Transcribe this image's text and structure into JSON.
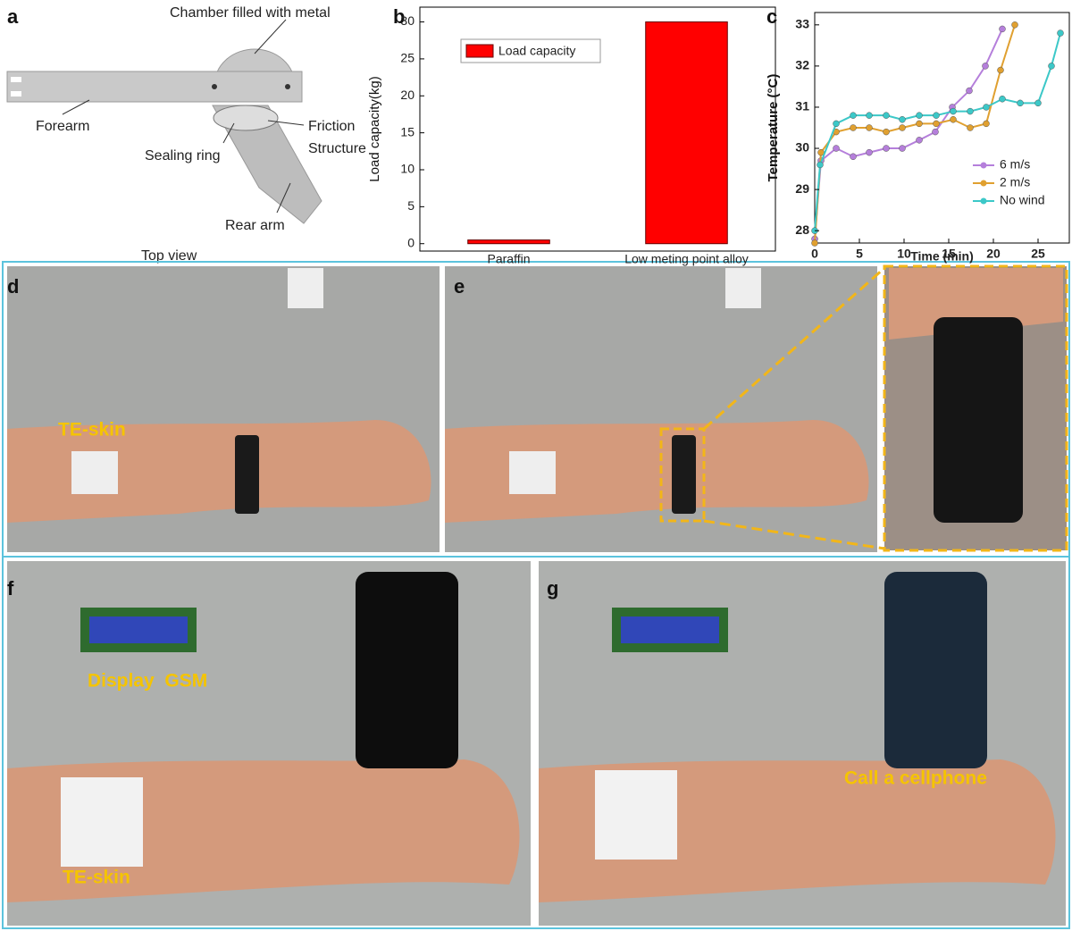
{
  "panel_a": {
    "letter": "a",
    "chamber": "Chamber filled with metal",
    "forearm": "Forearm",
    "friction": [
      "Friction",
      "Structure"
    ],
    "sealing": "Sealing ring",
    "rear_arm": "Rear arm",
    "view": "Top view"
  },
  "panel_d": {
    "letter": "d",
    "label": "TE-skin"
  },
  "panel_e": {
    "letter": "e"
  },
  "panel_f": {
    "letter": "f",
    "label1": "Display  GSM",
    "label2": "TE-skin"
  },
  "panel_g": {
    "letter": "g",
    "label": "Call a cellphone"
  },
  "chart_data": [
    {
      "type": "bar",
      "panel": "b",
      "ylabel": "Load capacity(kg)",
      "categories": [
        "Paraffin",
        "Low meting point alloy"
      ],
      "values": [
        0.5,
        30
      ],
      "color": "#ff0000",
      "ylim": [
        -1,
        32
      ],
      "yticks": [
        0,
        5,
        10,
        15,
        20,
        25,
        30
      ],
      "legend": "upper left",
      "legend_label": "Load capacity"
    },
    {
      "type": "line",
      "panel": "c",
      "xlabel": "Time (min)",
      "ylabel": "Temperature (°C)",
      "xlim": [
        0,
        28.5
      ],
      "ylim": [
        27.7,
        33.3
      ],
      "xticks": [
        0,
        5,
        10,
        15,
        20,
        25
      ],
      "yticks": [
        28,
        29,
        30,
        31,
        32,
        33
      ],
      "legend": "lower right",
      "series": [
        {
          "name": "6 m/s",
          "color": "#b57fdb",
          "x": [
            0,
            0.7,
            2.4,
            4.3,
            6.1,
            8,
            9.8,
            11.7,
            13.5,
            15.4,
            17.3,
            19.1,
            21
          ],
          "values": [
            27.8,
            29.7,
            30.0,
            29.8,
            29.9,
            30.0,
            30.0,
            30.2,
            30.4,
            31.0,
            31.4,
            32.0,
            32.9
          ]
        },
        {
          "name": "2 m/s",
          "color": "#e0a030",
          "x": [
            0,
            0.7,
            2.4,
            4.3,
            6.1,
            8,
            9.8,
            11.7,
            13.6,
            15.5,
            17.4,
            19.2,
            20.8,
            22.4
          ],
          "values": [
            27.7,
            29.9,
            30.4,
            30.5,
            30.5,
            30.4,
            30.5,
            30.6,
            30.6,
            30.7,
            30.5,
            30.6,
            31.9,
            33.0
          ]
        },
        {
          "name": "No wind",
          "color": "#3cc8c8",
          "x": [
            0,
            0.6,
            2.4,
            4.3,
            6.1,
            8,
            9.8,
            11.7,
            13.6,
            15.5,
            17.4,
            19.2,
            21,
            23,
            25,
            26.5,
            27.5
          ],
          "values": [
            28.0,
            29.6,
            30.6,
            30.8,
            30.8,
            30.8,
            30.7,
            30.8,
            30.8,
            30.9,
            30.9,
            31.0,
            31.2,
            31.1,
            31.1,
            32.0,
            32.8
          ]
        }
      ]
    }
  ]
}
